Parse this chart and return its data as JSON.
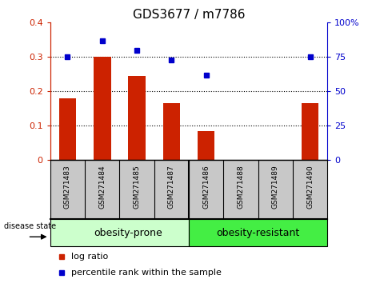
{
  "title": "GDS3677 / m7786",
  "samples": [
    "GSM271483",
    "GSM271484",
    "GSM271485",
    "GSM271487",
    "GSM271486",
    "GSM271488",
    "GSM271489",
    "GSM271490"
  ],
  "log_ratio": [
    0.18,
    0.3,
    0.245,
    0.165,
    0.085,
    0.0,
    0.0,
    0.165
  ],
  "percentile_rank": [
    75,
    87,
    80,
    73,
    62,
    null,
    null,
    75
  ],
  "bar_color": "#cc2200",
  "dot_color": "#0000cc",
  "group1_label": "obesity-prone",
  "group2_label": "obesity-resistant",
  "group1_color": "#ccffcc",
  "group2_color": "#44ee44",
  "ylim_left": [
    0,
    0.4
  ],
  "ylim_right": [
    0,
    100
  ],
  "yticks_left": [
    0,
    0.1,
    0.2,
    0.3,
    0.4
  ],
  "yticks_right": [
    0,
    25,
    50,
    75,
    100
  ],
  "ytick_labels_left": [
    "0",
    "0.1",
    "0.2",
    "0.3",
    "0.4"
  ],
  "ytick_labels_right": [
    "0",
    "25",
    "50",
    "75",
    "100%"
  ],
  "disease_state_label": "disease state",
  "legend_bar_label": "log ratio",
  "legend_dot_label": "percentile rank within the sample",
  "bar_width": 0.5,
  "label_area_color": "#c8c8c8",
  "title_fontsize": 11,
  "tick_fontsize": 8,
  "sample_fontsize": 6.5,
  "group_fontsize": 9,
  "legend_fontsize": 8
}
